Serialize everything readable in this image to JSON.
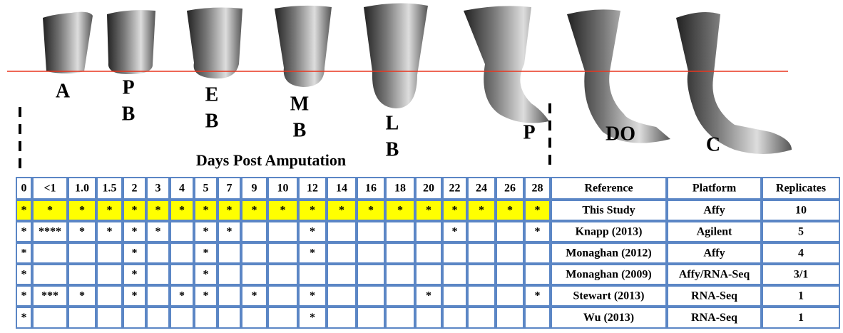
{
  "stages": [
    [
      "A"
    ],
    [
      "P",
      "B"
    ],
    [
      "E",
      "B"
    ],
    [
      "M",
      "B"
    ],
    [
      "L",
      "B"
    ],
    [
      "P"
    ],
    [
      "DO"
    ],
    [
      "C"
    ]
  ],
  "caption": "Days Post Amputation",
  "table": {
    "header": [
      "0",
      "<1",
      "1.0",
      "1.5",
      "2",
      "3",
      "4",
      "5",
      "7",
      "9",
      "10",
      "12",
      "14",
      "16",
      "18",
      "20",
      "22",
      "24",
      "26",
      "28",
      "Reference",
      "Platform",
      "Replicates"
    ],
    "rows": [
      [
        "*",
        "*",
        "*",
        "*",
        "*",
        "*",
        "*",
        "*",
        "*",
        "*",
        "*",
        "*",
        "*",
        "*",
        "*",
        "*",
        "*",
        "*",
        "*",
        "*",
        "This Study",
        "Affy",
        "10"
      ],
      [
        "*",
        "****",
        "*",
        "*",
        "*",
        "*",
        null,
        "*",
        "*",
        null,
        null,
        "*",
        null,
        null,
        null,
        null,
        "*",
        null,
        null,
        "*",
        "Knapp (2013)",
        "Agilent",
        "5"
      ],
      [
        "*",
        null,
        null,
        null,
        "*",
        null,
        null,
        "*",
        null,
        null,
        null,
        "*",
        null,
        null,
        null,
        null,
        null,
        null,
        null,
        null,
        "Monaghan (2012)",
        "Affy",
        "4"
      ],
      [
        "*",
        null,
        null,
        null,
        "*",
        null,
        null,
        "*",
        null,
        null,
        null,
        null,
        null,
        null,
        null,
        null,
        null,
        null,
        null,
        null,
        "Monaghan (2009)",
        "Affy/RNA-Seq",
        "3/1"
      ],
      [
        "*",
        "***",
        "*",
        null,
        "*",
        null,
        "*",
        "*",
        null,
        "*",
        null,
        "*",
        null,
        null,
        null,
        "*",
        null,
        null,
        null,
        "*",
        "Stewart (2013)",
        "RNA-Seq",
        "1"
      ],
      [
        "*",
        null,
        null,
        null,
        null,
        null,
        null,
        null,
        null,
        null,
        null,
        "*",
        null,
        null,
        null,
        null,
        null,
        null,
        null,
        null,
        "Wu (2013)",
        "RNA-Seq",
        "1"
      ]
    ]
  }
}
